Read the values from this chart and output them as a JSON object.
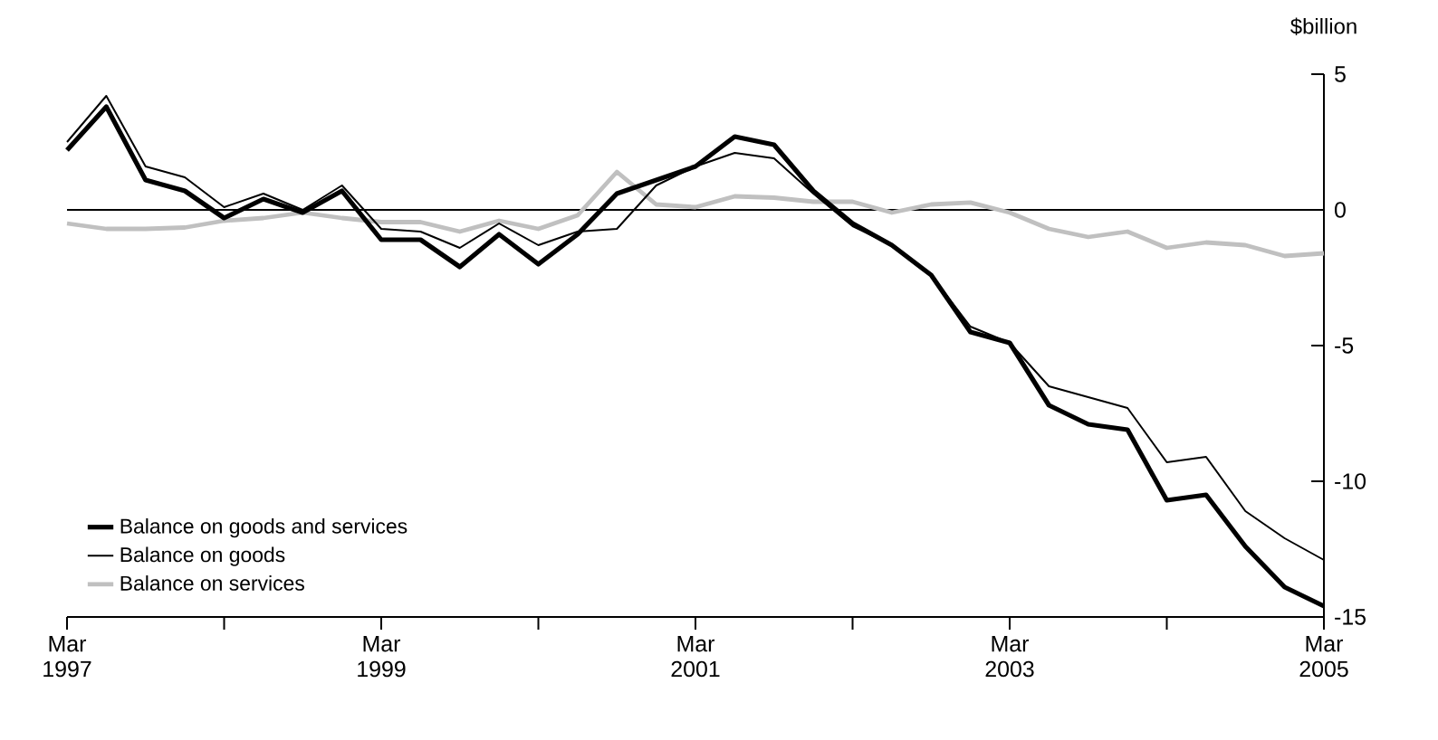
{
  "chart_data": {
    "type": "line",
    "ylabel": "$billion",
    "x": [
      "1997-03",
      "1997-06",
      "1997-09",
      "1997-12",
      "1998-03",
      "1998-06",
      "1998-09",
      "1998-12",
      "1999-03",
      "1999-06",
      "1999-09",
      "1999-12",
      "2000-03",
      "2000-06",
      "2000-09",
      "2000-12",
      "2001-03",
      "2001-06",
      "2001-09",
      "2001-12",
      "2002-03",
      "2002-06",
      "2002-09",
      "2002-12",
      "2003-03",
      "2003-06",
      "2003-09",
      "2003-12",
      "2004-03",
      "2004-06",
      "2004-09",
      "2004-12",
      "2005-03"
    ],
    "series": [
      {
        "name": "Balance on goods and services",
        "color": "#000000",
        "values": [
          2.2,
          3.8,
          1.1,
          0.7,
          -0.3,
          0.4,
          -0.1,
          0.7,
          -1.1,
          -1.1,
          -2.1,
          -0.9,
          -2.0,
          -0.9,
          0.6,
          1.1,
          1.6,
          2.7,
          2.4,
          0.7,
          -0.5,
          -1.3,
          -2.4,
          -4.5,
          -4.9,
          -7.2,
          -7.9,
          -8.1,
          -10.7,
          -10.5,
          -12.4,
          -13.9,
          -14.6
        ]
      },
      {
        "name": "Balance on goods",
        "color": "#000000",
        "values": [
          2.5,
          4.2,
          1.6,
          1.2,
          0.1,
          0.6,
          0.0,
          0.9,
          -0.7,
          -0.8,
          -1.4,
          -0.5,
          -1.3,
          -0.8,
          -0.7,
          0.9,
          1.6,
          2.1,
          1.9,
          0.6,
          -0.6,
          -1.3,
          -2.4,
          -4.3,
          -4.9,
          -6.5,
          -6.9,
          -7.3,
          -9.3,
          -9.1,
          -11.1,
          -12.1,
          -12.9
        ]
      },
      {
        "name": "Balance on services",
        "color": "#c0c0c0",
        "values": [
          -0.5,
          -0.7,
          -0.7,
          -0.65,
          -0.4,
          -0.3,
          -0.1,
          -0.3,
          -0.45,
          -0.45,
          -0.8,
          -0.4,
          -0.7,
          -0.2,
          1.4,
          0.2,
          0.1,
          0.5,
          0.45,
          0.3,
          0.3,
          -0.1,
          0.2,
          0.27,
          -0.1,
          -0.7,
          -1.0,
          -0.8,
          -1.4,
          -1.2,
          -1.3,
          -1.7,
          -1.6
        ]
      }
    ],
    "xlim": [
      "1997-03",
      "2005-03"
    ],
    "xticks": [
      {
        "value": "1997-03",
        "label": "Mar 1997"
      },
      {
        "value": "1998-03",
        "label": null
      },
      {
        "value": "1999-03",
        "label": "Mar 1999"
      },
      {
        "value": "2000-03",
        "label": null
      },
      {
        "value": "2001-03",
        "label": "Mar 2001"
      },
      {
        "value": "2002-03",
        "label": null
      },
      {
        "value": "2003-03",
        "label": "Mar 2003"
      },
      {
        "value": "2004-03",
        "label": null
      },
      {
        "value": "2005-03",
        "label": "Mar 2005"
      }
    ],
    "ylim": [
      -15,
      5
    ],
    "yticks": [
      -15,
      -10,
      -5,
      0,
      5
    ],
    "ref_lines": [
      {
        "axis": "y",
        "value": 0,
        "color": "#000000"
      }
    ],
    "legend": "bottom left",
    "grid": false,
    "line_style": "solid",
    "marker": "none"
  }
}
